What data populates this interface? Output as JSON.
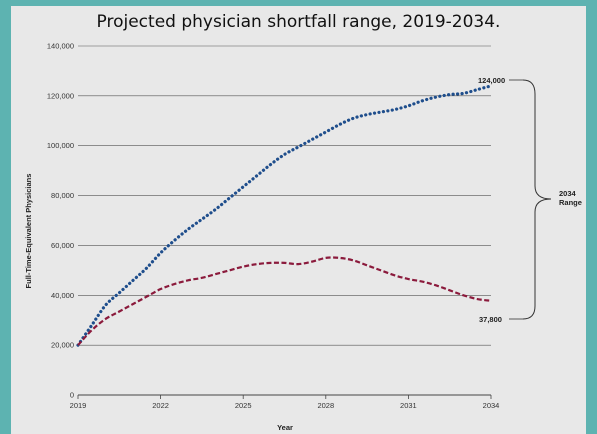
{
  "chart_data": {
    "type": "line",
    "title": "Projected physician shortfall range, 2019-2034.",
    "xlabel": "Year",
    "ylabel": "Full-Time-Equivalent Physicians",
    "xlim": [
      2019,
      2034
    ],
    "ylim": [
      0,
      140000
    ],
    "x_ticks": [
      "2019",
      "2022",
      "2025",
      "2028",
      "2031",
      "2034"
    ],
    "y_ticks": [
      "0",
      "20,000",
      "40,000",
      "60,000",
      "80,000",
      "100,000",
      "120,000",
      "140,000"
    ],
    "grid": true,
    "series": [
      {
        "color": "#1f4e8c",
        "style": "dotted",
        "x": [
          2019,
          2019.5,
          2020,
          2020.5,
          2021,
          2021.5,
          2022,
          2022.5,
          2023,
          2023.5,
          2024,
          2024.5,
          2025,
          2025.5,
          2026,
          2026.5,
          2027,
          2027.5,
          2028,
          2028.5,
          2029,
          2029.5,
          2030,
          2030.5,
          2031,
          2031.5,
          2032,
          2032.5,
          2033,
          2033.5,
          2034
        ],
        "values": [
          20000,
          28000,
          36000,
          41000,
          46000,
          51000,
          57000,
          62000,
          66500,
          70500,
          74500,
          79000,
          83500,
          88000,
          92500,
          96500,
          99500,
          102500,
          105500,
          108500,
          111000,
          112500,
          113500,
          114500,
          116000,
          118000,
          119500,
          120500,
          121000,
          122500,
          124000
        ]
      },
      {
        "color": "#8b1a3c",
        "style": "dashed",
        "x": [
          2019,
          2019.5,
          2020,
          2020.5,
          2021,
          2021.5,
          2022,
          2022.5,
          2023,
          2023.5,
          2024,
          2024.5,
          2025,
          2025.5,
          2026,
          2026.5,
          2027,
          2027.5,
          2028,
          2028.5,
          2029,
          2029.5,
          2030,
          2030.5,
          2031,
          2031.5,
          2032,
          2032.5,
          2033,
          2033.5,
          2034
        ],
        "values": [
          20000,
          26000,
          30500,
          33500,
          36500,
          39500,
          42500,
          44500,
          46000,
          47000,
          48500,
          50000,
          51500,
          52500,
          53000,
          53000,
          52500,
          53500,
          55000,
          55000,
          54000,
          52000,
          50000,
          48000,
          46500,
          45500,
          44000,
          42000,
          40000,
          38500,
          37800
        ]
      }
    ],
    "annotations": {
      "upper_label": "124,000",
      "lower_label": "37,800",
      "range_label_line1": "2034",
      "range_label_line2": "Range"
    }
  }
}
